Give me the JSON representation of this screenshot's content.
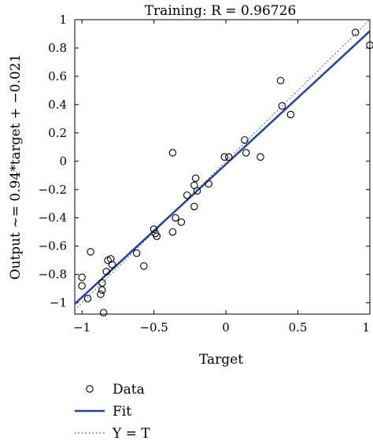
{
  "chart_data": {
    "type": "scatter",
    "title": "Training: R = 0.96726",
    "xlabel": "Target",
    "ylabel": "Output ~= 0.94*target + −0.021",
    "xlim": [
      -1.05,
      1.0
    ],
    "ylim": [
      -1.08,
      1.0
    ],
    "grid": false,
    "x_ticks": [
      -1,
      -0.5,
      0,
      0.5,
      1
    ],
    "x_tick_labels": [
      "−1",
      "−0.5",
      "0",
      "0.5",
      "1"
    ],
    "y_ticks": [
      -1,
      -0.8,
      -0.6,
      -0.4,
      -0.2,
      0,
      0.2,
      0.4,
      0.6,
      0.8,
      1
    ],
    "y_tick_labels": [
      "−1",
      "−0.8",
      "−0.6",
      "−0.4",
      "−0.2",
      "0",
      "0.2",
      "0.4",
      "0.6",
      "0.8",
      "1"
    ],
    "legend_placement": "bottom",
    "series": [
      {
        "name": "Data",
        "kind": "scatter",
        "marker": "open-circle",
        "color": "#000000",
        "points": [
          [
            -1.0,
            -0.82
          ],
          [
            -1.0,
            -0.88
          ],
          [
            -0.96,
            -0.97
          ],
          [
            -0.94,
            -0.64
          ],
          [
            -0.87,
            -0.94
          ],
          [
            -0.86,
            -0.91
          ],
          [
            -0.86,
            -0.86
          ],
          [
            -0.85,
            -1.07
          ],
          [
            -0.83,
            -0.78
          ],
          [
            -0.82,
            -0.7
          ],
          [
            -0.8,
            -0.69
          ],
          [
            -0.79,
            -0.73
          ],
          [
            -0.62,
            -0.65
          ],
          [
            -0.57,
            -0.74
          ],
          [
            -0.5,
            -0.48
          ],
          [
            -0.49,
            -0.51
          ],
          [
            -0.48,
            -0.53
          ],
          [
            -0.37,
            -0.5
          ],
          [
            -0.37,
            0.06
          ],
          [
            -0.35,
            -0.4
          ],
          [
            -0.31,
            -0.43
          ],
          [
            -0.27,
            -0.24
          ],
          [
            -0.22,
            -0.32
          ],
          [
            -0.22,
            -0.17
          ],
          [
            -0.21,
            -0.12
          ],
          [
            -0.2,
            -0.21
          ],
          [
            -0.12,
            -0.16
          ],
          [
            -0.01,
            0.03
          ],
          [
            0.02,
            0.03
          ],
          [
            0.13,
            0.15
          ],
          [
            0.14,
            0.06
          ],
          [
            0.24,
            0.03
          ],
          [
            0.38,
            0.57
          ],
          [
            0.39,
            0.39
          ],
          [
            0.45,
            0.33
          ],
          [
            0.9,
            0.91
          ],
          [
            1.0,
            0.82
          ]
        ]
      },
      {
        "name": "Fit",
        "kind": "line",
        "color": "#2140a8",
        "slope": 0.94,
        "intercept": -0.021
      },
      {
        "name": "Y = T",
        "kind": "line",
        "style": "dotted",
        "color": "#555555",
        "slope": 1,
        "intercept": 0
      }
    ]
  }
}
